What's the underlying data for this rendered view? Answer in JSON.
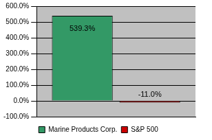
{
  "chart_data": {
    "type": "bar",
    "categories": [
      null
    ],
    "series": [
      {
        "name": "Marine Products Corp.",
        "color": "#339966",
        "values": [
          539.3
        ],
        "value_labels": [
          "539.3%"
        ]
      },
      {
        "name": "S&P 500",
        "color": "#cc0000",
        "values": [
          -11.0
        ],
        "value_labels": [
          "-11.0%"
        ]
      }
    ],
    "ylim": [
      -100,
      600
    ],
    "yticks": [
      {
        "value": -100,
        "label": "-100.0%"
      },
      {
        "value": 0,
        "label": "0.0%"
      },
      {
        "value": 100,
        "label": "100.0%"
      },
      {
        "value": 200,
        "label": "200.0%"
      },
      {
        "value": 300,
        "label": "300.0%"
      },
      {
        "value": 400,
        "label": "400.0%"
      },
      {
        "value": 500,
        "label": "500.0%"
      },
      {
        "value": 600,
        "label": "600.0%"
      }
    ],
    "grid": true,
    "legend": "bottom",
    "data_labels": true
  }
}
